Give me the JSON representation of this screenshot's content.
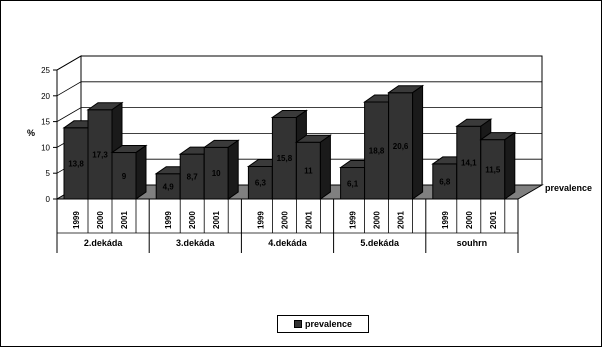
{
  "chart_data": {
    "type": "bar",
    "ylabel": "%",
    "ylim": [
      0,
      25
    ],
    "yticks": [
      0,
      5,
      10,
      15,
      20,
      25
    ],
    "series_label": "prevalence",
    "legend": {
      "label": "prevalence",
      "placement": "bottom"
    },
    "bar_color": "#333333",
    "groups": [
      {
        "name": "2.dekáda",
        "years": [
          "1999",
          "2000",
          "2001"
        ],
        "values": [
          13.8,
          17.3,
          9
        ],
        "labels": [
          "13,8",
          "17,3",
          "9"
        ]
      },
      {
        "name": "3.dekáda",
        "years": [
          "1999",
          "2000",
          "2001"
        ],
        "values": [
          4.9,
          8.7,
          10
        ],
        "labels": [
          "4,9",
          "8,7",
          "10"
        ]
      },
      {
        "name": "4.dekáda",
        "years": [
          "1999",
          "2000",
          "2001"
        ],
        "values": [
          6.3,
          15.8,
          11
        ],
        "labels": [
          "6,3",
          "15,8",
          "11"
        ]
      },
      {
        "name": "5.dekáda",
        "years": [
          "1999",
          "2000",
          "2001"
        ],
        "values": [
          6.1,
          18.8,
          20.6
        ],
        "labels": [
          "6,1",
          "18,8",
          "20,6"
        ]
      },
      {
        "name": "souhrn",
        "years": [
          "1999",
          "2000",
          "2001"
        ],
        "values": [
          6.8,
          14.1,
          11.5
        ],
        "labels": [
          "6,8",
          "14,1",
          "11,5"
        ]
      }
    ]
  }
}
